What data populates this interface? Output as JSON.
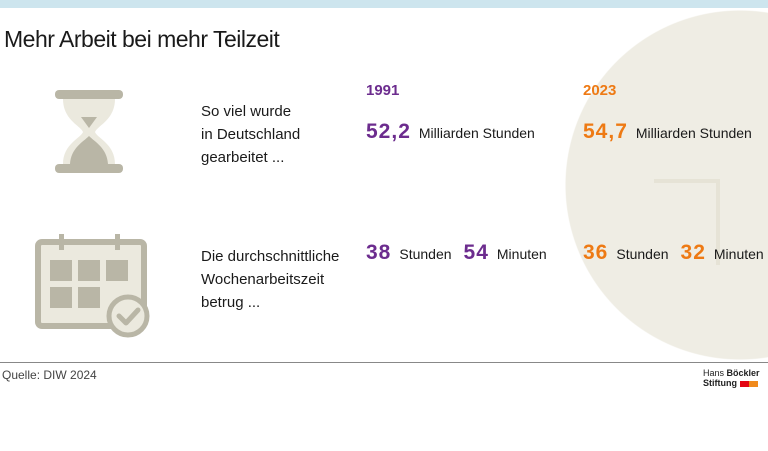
{
  "title": "Mehr Arbeit bei mehr Teilzeit",
  "years": {
    "left": "1991",
    "right": "2023"
  },
  "rows": [
    {
      "icon": "hourglass-icon",
      "description": [
        "So viel wurde",
        "in Deutschland",
        "gearbeitet ..."
      ],
      "left": {
        "value": "52,2",
        "unit": "Milliarden Stunden"
      },
      "right": {
        "value": "54,7",
        "unit": "Milliarden Stunden"
      }
    },
    {
      "icon": "calendar-check-icon",
      "description": [
        "Die durchschnittliche",
        "Wochenarbeitszeit",
        "betrug ..."
      ],
      "left": {
        "hours": "38",
        "hours_unit": "Stunden",
        "minutes": "54",
        "minutes_unit": "Minuten"
      },
      "right": {
        "hours": "36",
        "hours_unit": "Stunden",
        "minutes": "32",
        "minutes_unit": "Minuten"
      }
    }
  ],
  "source": "Quelle: DIW 2024",
  "logo": {
    "line1a": "Hans",
    "line1b": "Böckler",
    "line2": "Stiftung"
  },
  "colors": {
    "y1991": "#6c2c8e",
    "y2023": "#ee7a14",
    "icon": "#b9b6a6",
    "circle": "#efede4",
    "topbar": "#cde5ee"
  }
}
